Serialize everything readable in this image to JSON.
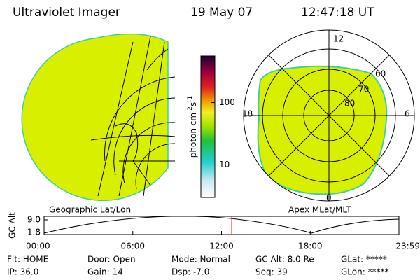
{
  "header": {
    "title": "Ultraviolet Imager",
    "date": "19 May 07",
    "time": "12:47:18 UT"
  },
  "geo_panel": {
    "label": "Geographic Lat/Lon"
  },
  "polar_panel": {
    "label": "Apex MLat/MLT",
    "mlt_labels": [
      "12",
      "18",
      "6",
      "0"
    ],
    "lat_labels": [
      "60",
      "70",
      "80"
    ]
  },
  "colorbar": {
    "label_parts": [
      "photon cm",
      "-2",
      "s",
      "-1"
    ],
    "ticks": [
      10,
      100
    ],
    "range": [
      3,
      560
    ],
    "log": true
  },
  "altitude": {
    "axis_label": "GC Alt",
    "yticks": [
      {
        "value": 9.0,
        "label": "9.0"
      },
      {
        "value": 1.8,
        "label": "1.8"
      }
    ],
    "ylim": [
      1.8,
      9.0
    ],
    "xticks": [
      "00:00",
      "06:00",
      "12:00",
      "18:00",
      "23:59"
    ]
  },
  "status": {
    "rows": [
      [
        "Flt: HOME",
        "Door: Open",
        "Mode: Normal",
        "GC Alt: 8.0 Re",
        "GLat: *****"
      ],
      [
        "IP: 36.0",
        "Gain: 14",
        "Dsp:   -7.0",
        "Seq: 39",
        "GLon: *****"
      ]
    ]
  }
}
